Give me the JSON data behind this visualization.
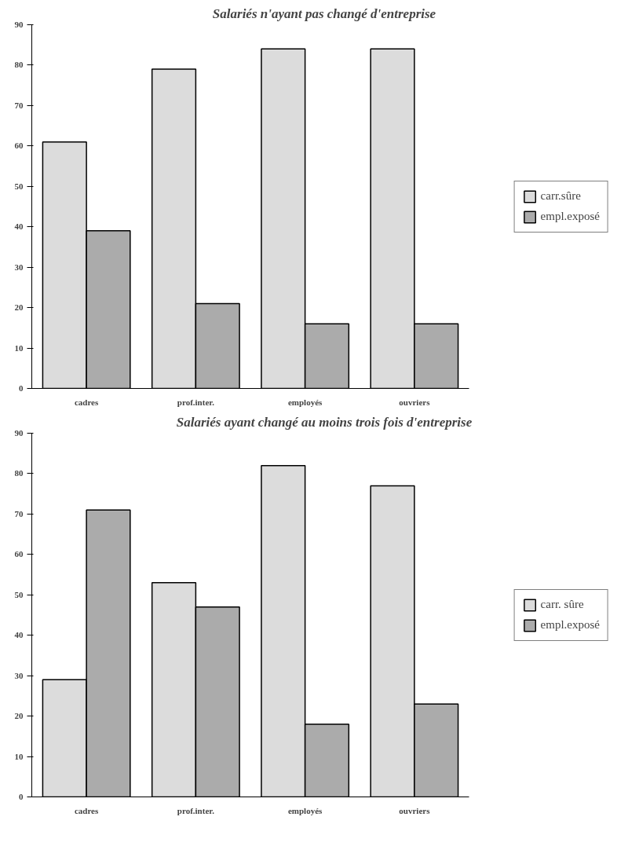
{
  "chart_data": [
    {
      "type": "bar",
      "title": "Salariés n'ayant pas changé d'entreprise",
      "categories": [
        "cadres",
        "prof.inter.",
        "employés",
        "ouvriers"
      ],
      "series": [
        {
          "name": "carr.sûre",
          "color": "#dcdcdc",
          "values": [
            61,
            79,
            84,
            84
          ]
        },
        {
          "name": "empl.exposé",
          "color": "#ababab",
          "values": [
            39,
            21,
            16,
            16
          ]
        }
      ],
      "ylim": [
        0,
        90
      ],
      "yticks": [
        0,
        10,
        20,
        30,
        40,
        50,
        60,
        70,
        80,
        90
      ],
      "grid": false,
      "legend": "right"
    },
    {
      "type": "bar",
      "title": "Salariés ayant changé au moins trois fois d'entreprise",
      "categories": [
        "cadres",
        "prof.inter.",
        "employés",
        "ouvriers"
      ],
      "series": [
        {
          "name": "carr. sûre",
          "color": "#dcdcdc",
          "values": [
            29,
            53,
            82,
            77
          ]
        },
        {
          "name": "empl.exposé",
          "color": "#ababab",
          "values": [
            71,
            47,
            18,
            23
          ]
        }
      ],
      "ylim": [
        0,
        90
      ],
      "yticks": [
        0,
        10,
        20,
        30,
        40,
        50,
        60,
        70,
        80,
        90
      ],
      "grid": false,
      "legend": "right"
    }
  ]
}
